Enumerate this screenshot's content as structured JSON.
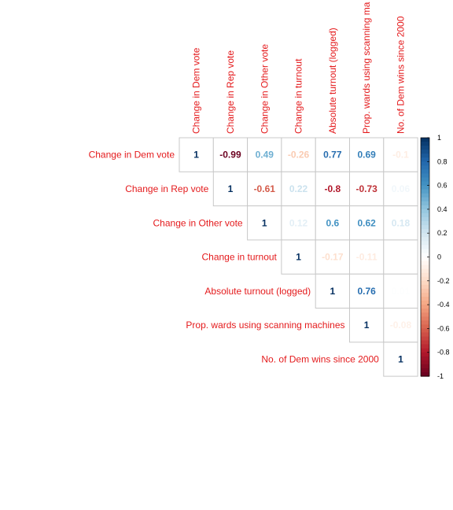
{
  "chart_data": {
    "type": "heatmap",
    "variables": [
      "Change in Dem vote",
      "Change in Rep vote",
      "Change in Other vote",
      "Change in turnout",
      "Absolute turnout (logged)",
      "Prop. wards using scanning machines",
      "No. of Dem wins since 2000"
    ],
    "column_labels": [
      "Change in Dem vote",
      "Change in Rep vote",
      "Change in Other vote",
      "Change in turnout",
      "Absolute turnout (logged)",
      "Prop. wards using scanning ma",
      "No. of Dem wins since 2000"
    ],
    "matrix": [
      [
        1,
        -0.99,
        0.49,
        -0.26,
        0.77,
        0.69,
        -0.1
      ],
      [
        null,
        1,
        -0.61,
        0.22,
        -0.8,
        -0.73,
        0.06
      ],
      [
        null,
        null,
        1,
        0.12,
        0.6,
        0.62,
        0.18
      ],
      [
        null,
        null,
        null,
        1,
        -0.17,
        -0.11,
        null
      ],
      [
        null,
        null,
        null,
        null,
        1,
        0.76,
        0.01
      ],
      [
        null,
        null,
        null,
        null,
        null,
        1,
        -0.08
      ],
      [
        null,
        null,
        null,
        null,
        null,
        null,
        1
      ]
    ],
    "scale_ticks": [
      1,
      0.8,
      0.6,
      0.4,
      0.2,
      0,
      -0.2,
      -0.4,
      -0.6,
      -0.8,
      -1
    ],
    "scale_range": [
      -1,
      1
    ],
    "label_color": "#e41a1c",
    "grid_color": "#c8c8c8"
  }
}
